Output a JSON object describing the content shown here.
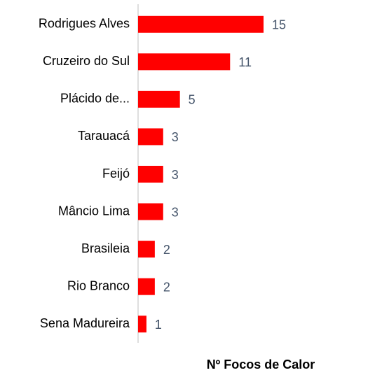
{
  "chart_data": {
    "type": "bar",
    "orientation": "horizontal",
    "x_label": "Nº Focos de Calor",
    "categories": [
      "Rodrigues Alves",
      "Cruzeiro do Sul",
      "Plácido de...",
      "Tarauacá",
      "Feijó",
      "Mâncio Lima",
      "Brasileia",
      "Rio Branco",
      "Sena Madureira"
    ],
    "values": [
      15,
      11,
      5,
      3,
      3,
      3,
      2,
      2,
      1
    ],
    "color": "#ff0000",
    "xlim": [
      0,
      30
    ]
  }
}
